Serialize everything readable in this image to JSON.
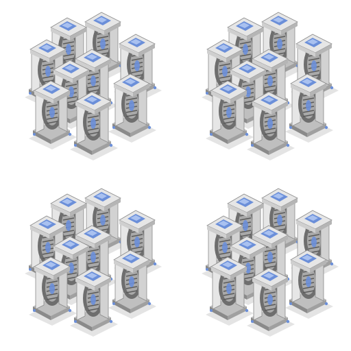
{
  "sprite_sheet": {
    "subject": "wheel-unit-cluster",
    "frame_count": 4,
    "units_per_frame": 9,
    "colors": {
      "background": "#ffffff",
      "shadow": "#d9d9d9",
      "metal_light": "#e6e6e6",
      "metal_mid": "#bfbfbf",
      "metal_dark": "#8a8a8a",
      "tire": "#6e6e6e",
      "tire_rim": "#a9a9a9",
      "accent": "#6b8fd9",
      "accent_light": "#a9c1f0"
    },
    "frames": [
      {
        "id": "frame-1"
      },
      {
        "id": "frame-2"
      },
      {
        "id": "frame-3"
      },
      {
        "id": "frame-4"
      }
    ]
  }
}
